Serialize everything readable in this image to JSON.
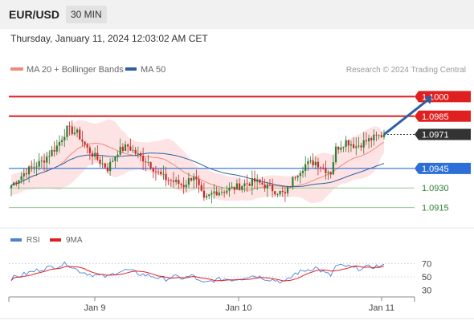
{
  "header": {
    "symbol": "EUR/USD",
    "timeframe": "30 MIN",
    "datetime": "Thursday, January 11, 2024 12:03:02 AM CET"
  },
  "legend": {
    "items": [
      {
        "label": "MA 20 + Bollinger Bands",
        "color": "#f08a80"
      },
      {
        "label": "MA 50",
        "color": "#2e5fa3"
      }
    ]
  },
  "watermark": "Research © 2024 Trading Central",
  "colors": {
    "up": "#2e7d32",
    "down": "#c62828",
    "resistance": "#e02020",
    "pivot": "#2d6fd6",
    "support": "#8fc98f",
    "support_text": "#2e7d32",
    "current": "#333333",
    "bollinger_fill": "#fcdada",
    "ma20": "#f08a80",
    "ma50": "#2e5fa3",
    "arrow": "#2e5fa3",
    "rsi": "#4f7fd6",
    "rsi_ma": "#e02020"
  },
  "chart_data": [
    {
      "type": "candlestick",
      "symbol": "EUR/USD",
      "timeframe": "30 MIN",
      "x_ticks": [
        "Jan 9",
        "Jan 10",
        "Jan 11"
      ],
      "y_range": [
        1.09,
        1.1015
      ],
      "levels": [
        {
          "label": "1.1000",
          "value": 1.1,
          "kind": "resistance"
        },
        {
          "label": "1.0985",
          "value": 1.0985,
          "kind": "resistance"
        },
        {
          "label": "1.0971",
          "value": 1.0971,
          "kind": "current"
        },
        {
          "label": "1.0945",
          "value": 1.0945,
          "kind": "pivot"
        },
        {
          "label": "1.0930",
          "value": 1.093,
          "kind": "support"
        },
        {
          "label": "1.0915",
          "value": 1.0915,
          "kind": "support"
        }
      ],
      "close_path": [
        [
          0,
          1.0932
        ],
        [
          6,
          1.0943
        ],
        [
          12,
          1.095
        ],
        [
          18,
          1.0962
        ],
        [
          22,
          1.0975
        ],
        [
          26,
          1.0972
        ],
        [
          30,
          1.096
        ],
        [
          34,
          1.0952
        ],
        [
          38,
          1.0945
        ],
        [
          42,
          1.0958
        ],
        [
          46,
          1.0962
        ],
        [
          50,
          1.0955
        ],
        [
          54,
          1.095
        ],
        [
          57,
          1.0943
        ],
        [
          60,
          1.0938
        ],
        [
          64,
          1.0935
        ],
        [
          68,
          1.0932
        ],
        [
          72,
          1.094
        ],
        [
          74,
          1.093
        ],
        [
          76,
          1.092
        ],
        [
          80,
          1.0927
        ],
        [
          84,
          1.0928
        ],
        [
          88,
          1.093
        ],
        [
          92,
          1.0933
        ],
        [
          96,
          1.0935
        ],
        [
          100,
          1.0932
        ],
        [
          104,
          1.0928
        ],
        [
          108,
          1.0925
        ],
        [
          112,
          1.094
        ],
        [
          116,
          1.0948
        ],
        [
          120,
          1.095
        ],
        [
          124,
          1.0944
        ],
        [
          126,
          1.0942
        ],
        [
          128,
          1.096
        ],
        [
          132,
          1.0966
        ],
        [
          136,
          1.0962
        ],
        [
          140,
          1.0966
        ],
        [
          144,
          1.0969
        ],
        [
          147,
          1.0971
        ]
      ],
      "candle_count": 148,
      "forecast_arrow": {
        "from": [
          147,
          1.0971
        ],
        "to": [
          164,
          1.0997
        ]
      }
    },
    {
      "type": "line",
      "title": "RSI",
      "series": [
        {
          "name": "RSI"
        },
        {
          "name": "9MA"
        }
      ],
      "y_ticks": [
        70,
        50,
        30
      ],
      "ylim": [
        20,
        80
      ],
      "rsi_path": [
        [
          0,
          48
        ],
        [
          6,
          55
        ],
        [
          12,
          62
        ],
        [
          18,
          66
        ],
        [
          22,
          70
        ],
        [
          26,
          60
        ],
        [
          30,
          55
        ],
        [
          34,
          52
        ],
        [
          38,
          50
        ],
        [
          42,
          58
        ],
        [
          46,
          60
        ],
        [
          50,
          55
        ],
        [
          54,
          52
        ],
        [
          57,
          50
        ],
        [
          60,
          46
        ],
        [
          64,
          50
        ],
        [
          68,
          48
        ],
        [
          72,
          52
        ],
        [
          74,
          43
        ],
        [
          76,
          40
        ],
        [
          80,
          45
        ],
        [
          84,
          47
        ],
        [
          88,
          46
        ],
        [
          92,
          50
        ],
        [
          96,
          52
        ],
        [
          100,
          48
        ],
        [
          104,
          45
        ],
        [
          108,
          42
        ],
        [
          112,
          55
        ],
        [
          116,
          60
        ],
        [
          120,
          64
        ],
        [
          124,
          55
        ],
        [
          126,
          52
        ],
        [
          128,
          66
        ],
        [
          132,
          66
        ],
        [
          136,
          62
        ],
        [
          140,
          64
        ],
        [
          144,
          66
        ],
        [
          147,
          66
        ]
      ]
    }
  ]
}
